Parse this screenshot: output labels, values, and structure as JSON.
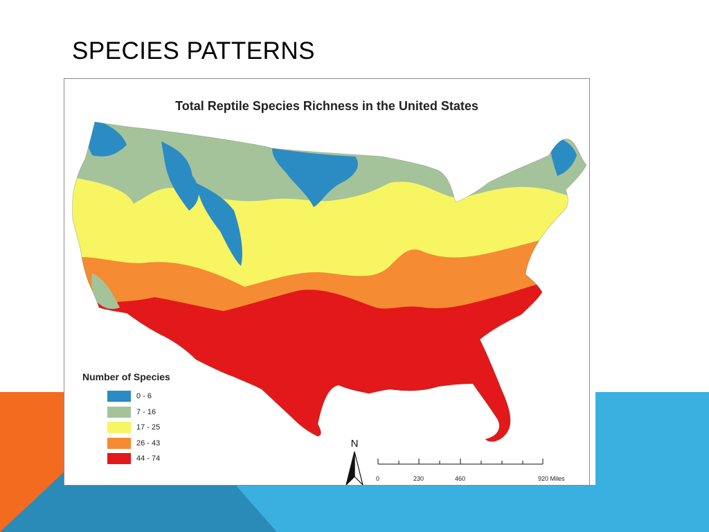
{
  "slide": {
    "title": "SPECIES PATTERNS"
  },
  "colors": {
    "orange_accent": "#f26b1f",
    "blue_accent": "#3ab0e0",
    "dark_blue_accent": "#2a8ab8"
  },
  "map": {
    "title": "Total Reptile Species Richness in the United States",
    "legend": {
      "title": "Number of Species",
      "items": [
        {
          "label": "0 - 6",
          "color": "#2b8cc4"
        },
        {
          "label": "7 - 16",
          "color": "#a4c39a"
        },
        {
          "label": "17 - 25",
          "color": "#f7f562"
        },
        {
          "label": "26 - 43",
          "color": "#f58b32"
        },
        {
          "label": "44 - 74",
          "color": "#e3181b"
        }
      ]
    },
    "north_arrow": "N",
    "scale_bar": {
      "labels": [
        "0",
        "230",
        "460",
        "920 Miles"
      ]
    }
  }
}
